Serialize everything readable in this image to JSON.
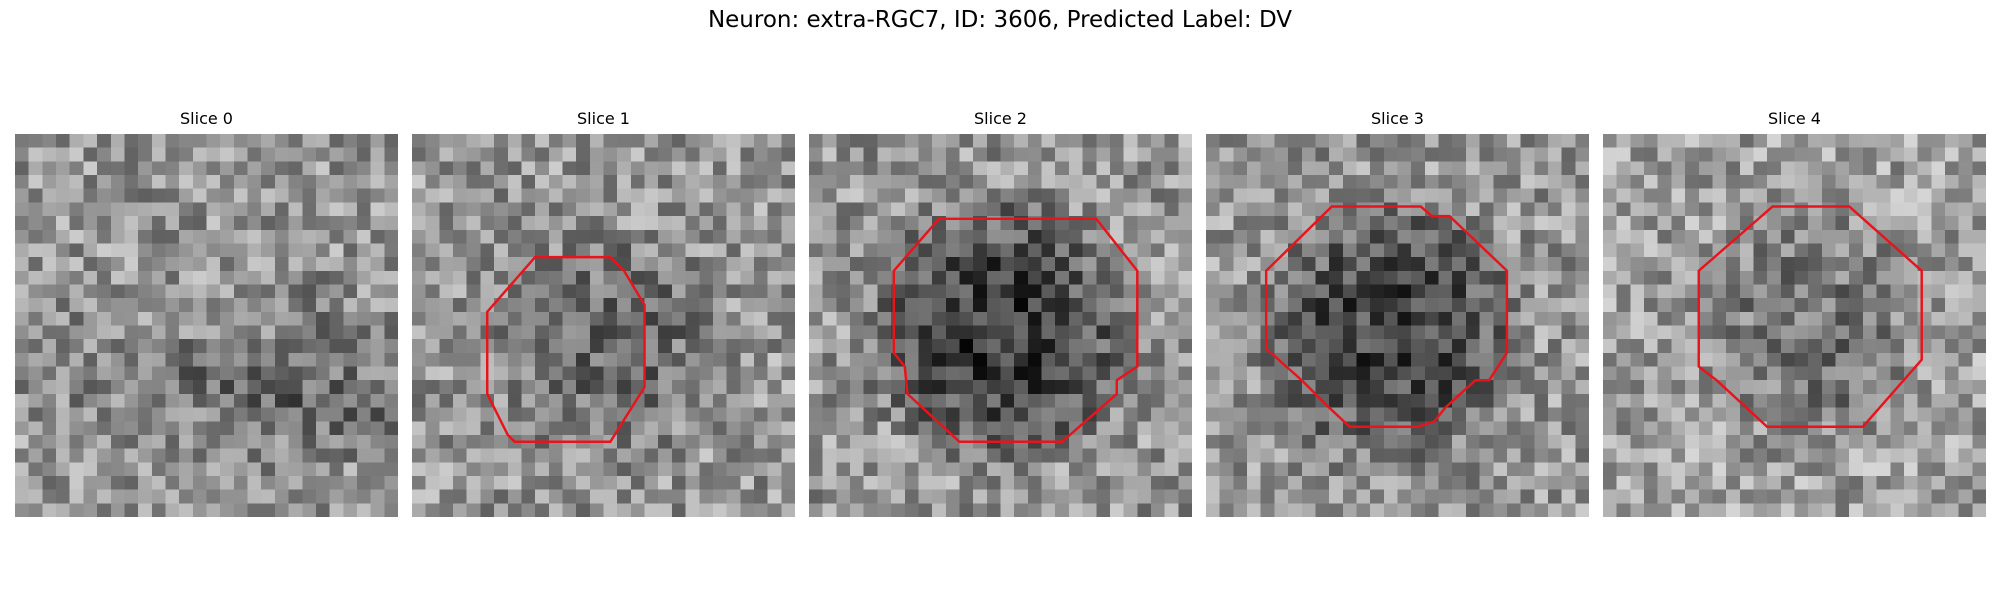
{
  "figure": {
    "title": "Neuron: extra-RGC7, ID: 3606, Predicted Label: DV",
    "grid_size": 28,
    "contour_color": "#e8141c"
  },
  "panels": [
    {
      "title": "Slice 0",
      "seed": 11,
      "base": 150,
      "blob": 20,
      "has_contour": false
    },
    {
      "title": "Slice 1",
      "seed": 23,
      "base": 150,
      "blob": 45,
      "has_contour": true
    },
    {
      "title": "Slice 2",
      "seed": 37,
      "base": 150,
      "blob": 95,
      "has_contour": true
    },
    {
      "title": "Slice 3",
      "seed": 53,
      "base": 150,
      "blob": 85,
      "has_contour": true
    },
    {
      "title": "Slice 4",
      "seed": 71,
      "base": 160,
      "blob": 45,
      "has_contour": true
    }
  ]
}
